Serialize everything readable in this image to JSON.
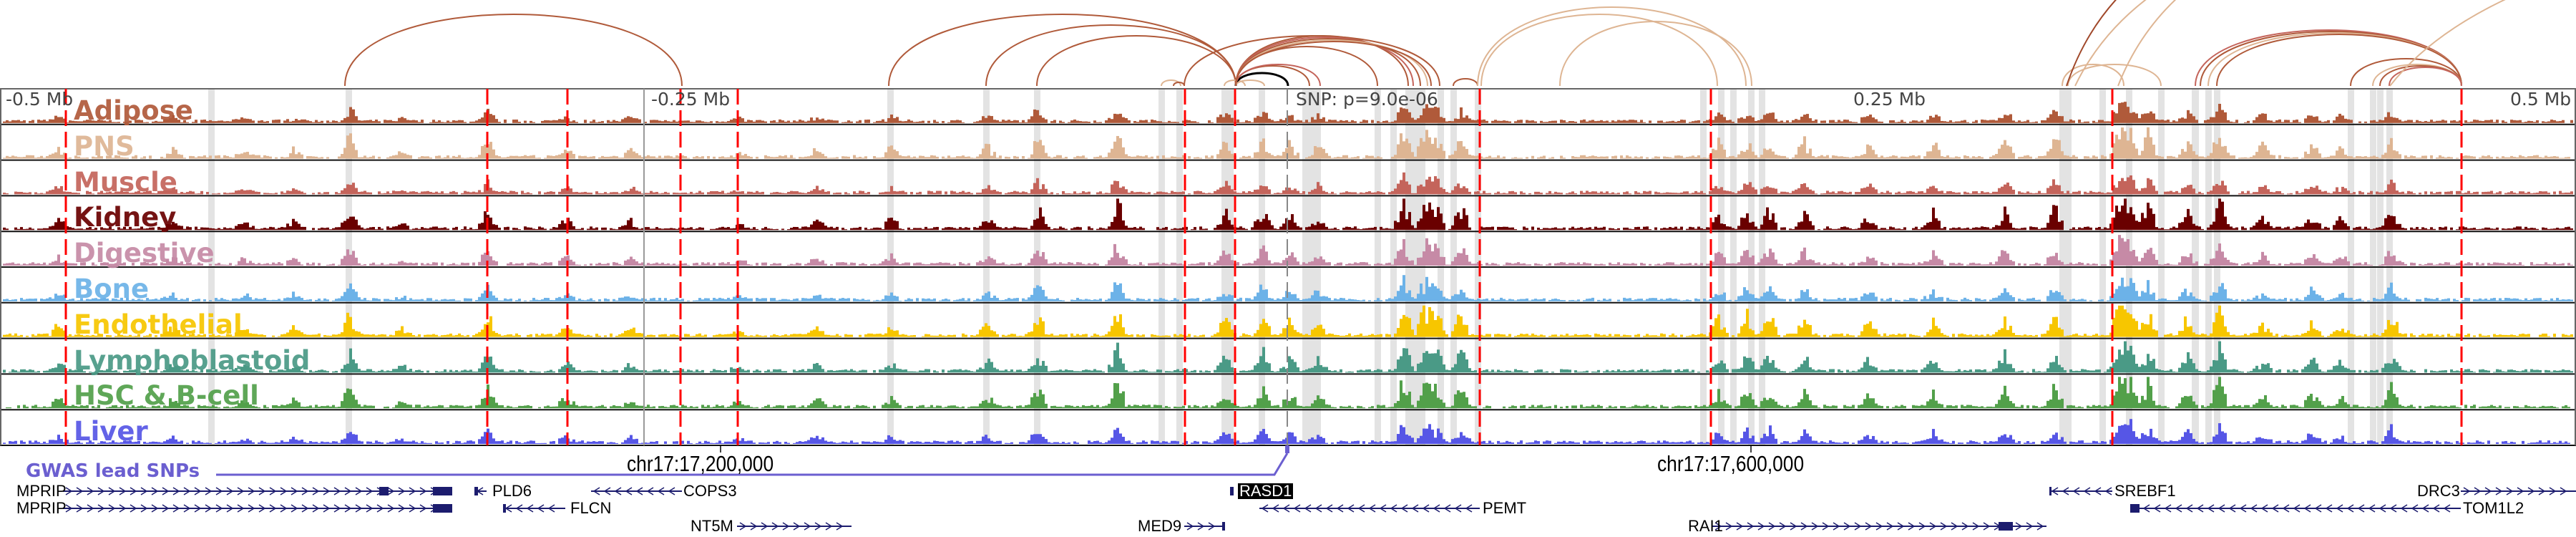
{
  "tracks": [
    {
      "name": "Adipose",
      "color": "#b05a3a"
    },
    {
      "name": "PNS",
      "color": "#deb593"
    },
    {
      "name": "Muscle",
      "color": "#c4645b"
    },
    {
      "name": "Kidney",
      "color": "#6a0000"
    },
    {
      "name": "Digestive",
      "color": "#c68aa6"
    },
    {
      "name": "Bone",
      "color": "#6cb2e8"
    },
    {
      "name": "Endothelial",
      "color": "#f7c600"
    },
    {
      "name": "Lymphoblastoid",
      "color": "#4a9a86"
    },
    {
      "name": "HSC & B-cell",
      "color": "#52a04a"
    },
    {
      "name": "Liver",
      "color": "#5656e6"
    }
  ],
  "axis": {
    "left": "-0.5 Mb",
    "mid_left": "-0.25 Mb",
    "mid_right": "0.25 Mb",
    "right": "0.5 Mb",
    "snp": "SNP: p=9.0e-06"
  },
  "coords": {
    "tick1": "chr17:17,200,000",
    "tick2": "chr17:17,600,000"
  },
  "gwas": {
    "label": "GWAS lead SNPs",
    "color": "#6b5fd0"
  },
  "genes": [
    {
      "name": "MPRIP",
      "strand": "+"
    },
    {
      "name": "PLD6",
      "strand": "-"
    },
    {
      "name": "COPS3",
      "strand": "-"
    },
    {
      "name": "RASD1",
      "strand": "-",
      "highlighted": true
    },
    {
      "name": "SREBF1",
      "strand": "-"
    },
    {
      "name": "DRC3",
      "strand": "+"
    },
    {
      "name": "MPRIP",
      "strand": "+"
    },
    {
      "name": "FLCN",
      "strand": "-"
    },
    {
      "name": "PEMT",
      "strand": "-"
    },
    {
      "name": "TOM1L2",
      "strand": "-"
    },
    {
      "name": "NT5M",
      "strand": "+"
    },
    {
      "name": "MED9",
      "strand": "+"
    },
    {
      "name": "RAI1",
      "strand": "+"
    }
  ],
  "colors": {
    "highlight_line": "#ff0000",
    "band": "#e3e3e3",
    "gene": "#1c1c6e"
  }
}
